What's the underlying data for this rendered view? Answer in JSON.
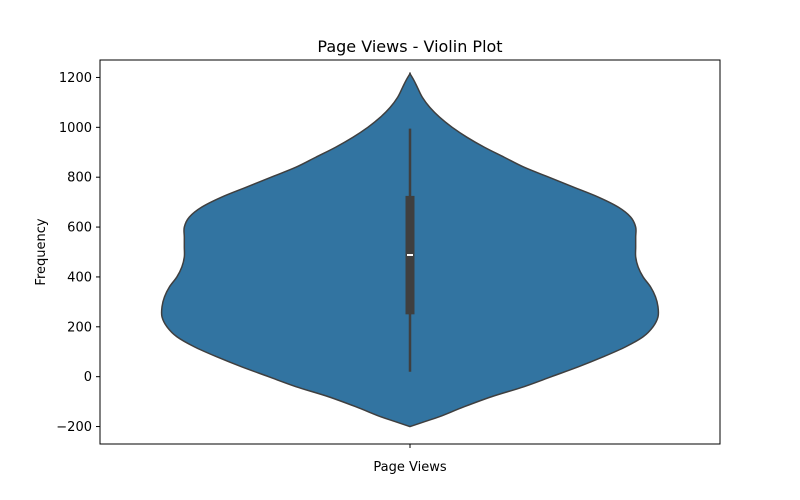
{
  "chart_data": {
    "type": "violin",
    "title": "Page Views - Violin Plot",
    "xlabel": "",
    "ylabel": "Frequency",
    "categories": [
      "Page Views"
    ],
    "ylim": [
      -270,
      1270
    ],
    "y_ticks": [
      -200,
      0,
      200,
      400,
      600,
      800,
      1000,
      1200
    ],
    "y_tick_labels": [
      "−200",
      "0",
      "200",
      "400",
      "600",
      "800",
      "1000",
      "1200"
    ],
    "grid": false,
    "legend": "none",
    "fill_color": "#3274a1",
    "edge_color": "#3f3f3f",
    "density_range": [
      -200,
      1215
    ],
    "density_profile": [
      {
        "y": -200,
        "w": 0.0
      },
      {
        "y": -180,
        "w": 0.06
      },
      {
        "y": -160,
        "w": 0.12
      },
      {
        "y": -120,
        "w": 0.22
      },
      {
        "y": -80,
        "w": 0.33
      },
      {
        "y": -40,
        "w": 0.46
      },
      {
        "y": 0,
        "w": 0.57
      },
      {
        "y": 40,
        "w": 0.68
      },
      {
        "y": 80,
        "w": 0.78
      },
      {
        "y": 120,
        "w": 0.87
      },
      {
        "y": 160,
        "w": 0.94
      },
      {
        "y": 200,
        "w": 0.98
      },
      {
        "y": 240,
        "w": 1.0
      },
      {
        "y": 280,
        "w": 1.0
      },
      {
        "y": 320,
        "w": 0.99
      },
      {
        "y": 360,
        "w": 0.97
      },
      {
        "y": 400,
        "w": 0.94
      },
      {
        "y": 440,
        "w": 0.92
      },
      {
        "y": 480,
        "w": 0.91
      },
      {
        "y": 520,
        "w": 0.91
      },
      {
        "y": 560,
        "w": 0.91
      },
      {
        "y": 600,
        "w": 0.91
      },
      {
        "y": 640,
        "w": 0.89
      },
      {
        "y": 680,
        "w": 0.84
      },
      {
        "y": 720,
        "w": 0.76
      },
      {
        "y": 760,
        "w": 0.66
      },
      {
        "y": 800,
        "w": 0.56
      },
      {
        "y": 840,
        "w": 0.46
      },
      {
        "y": 880,
        "w": 0.38
      },
      {
        "y": 920,
        "w": 0.3
      },
      {
        "y": 960,
        "w": 0.23
      },
      {
        "y": 1000,
        "w": 0.17
      },
      {
        "y": 1040,
        "w": 0.12
      },
      {
        "y": 1080,
        "w": 0.08
      },
      {
        "y": 1120,
        "w": 0.05
      },
      {
        "y": 1160,
        "w": 0.03
      },
      {
        "y": 1190,
        "w": 0.015
      },
      {
        "y": 1215,
        "w": 0.0
      }
    ],
    "box": {
      "whisker_low": 20,
      "q1": 250,
      "median": 488,
      "q3": 725,
      "whisker_high": 995
    }
  }
}
